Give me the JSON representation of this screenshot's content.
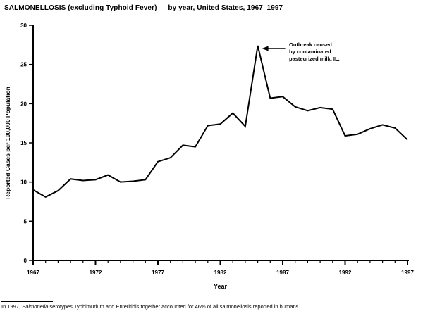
{
  "title": "SALMONELLOSIS (excluding Typhoid Fever) — by year, United States, 1967–1997",
  "chart_data": {
    "type": "line",
    "x": [
      1967,
      1968,
      1969,
      1970,
      1971,
      1972,
      1973,
      1974,
      1975,
      1976,
      1977,
      1978,
      1979,
      1980,
      1981,
      1982,
      1983,
      1984,
      1985,
      1986,
      1987,
      1988,
      1989,
      1990,
      1991,
      1992,
      1993,
      1994,
      1995,
      1996,
      1997
    ],
    "values": [
      9.0,
      8.1,
      8.9,
      10.4,
      10.2,
      10.3,
      10.9,
      10.0,
      10.1,
      10.3,
      12.6,
      13.1,
      14.7,
      14.5,
      17.2,
      17.4,
      18.8,
      17.1,
      27.4,
      20.7,
      20.9,
      19.6,
      19.1,
      19.5,
      19.3,
      15.9,
      16.1,
      16.8,
      17.3,
      16.9,
      15.4
    ],
    "xlabel": "Year",
    "ylabel": "Reported Cases per 100,000 Population",
    "xlim": [
      1967,
      1997
    ],
    "ylim": [
      0,
      30
    ],
    "xticks": [
      1967,
      1972,
      1977,
      1982,
      1987,
      1992,
      1997
    ],
    "yticks": [
      0,
      5,
      10,
      15,
      20,
      25,
      30
    ],
    "line_color": "#000000",
    "grid": "off",
    "annotation": {
      "text": "Outbreak caused\nby contaminated\npasteurized milk, IL.",
      "points_to": {
        "year": 1985,
        "value": 27.4
      }
    }
  },
  "footnote": {
    "prefix": "In 1997, ",
    "italic": "Salmonella",
    "rest": " serotypes Typhimurium and Enteritidis together accounted for 46% of all salmonellosis reported in humans."
  }
}
